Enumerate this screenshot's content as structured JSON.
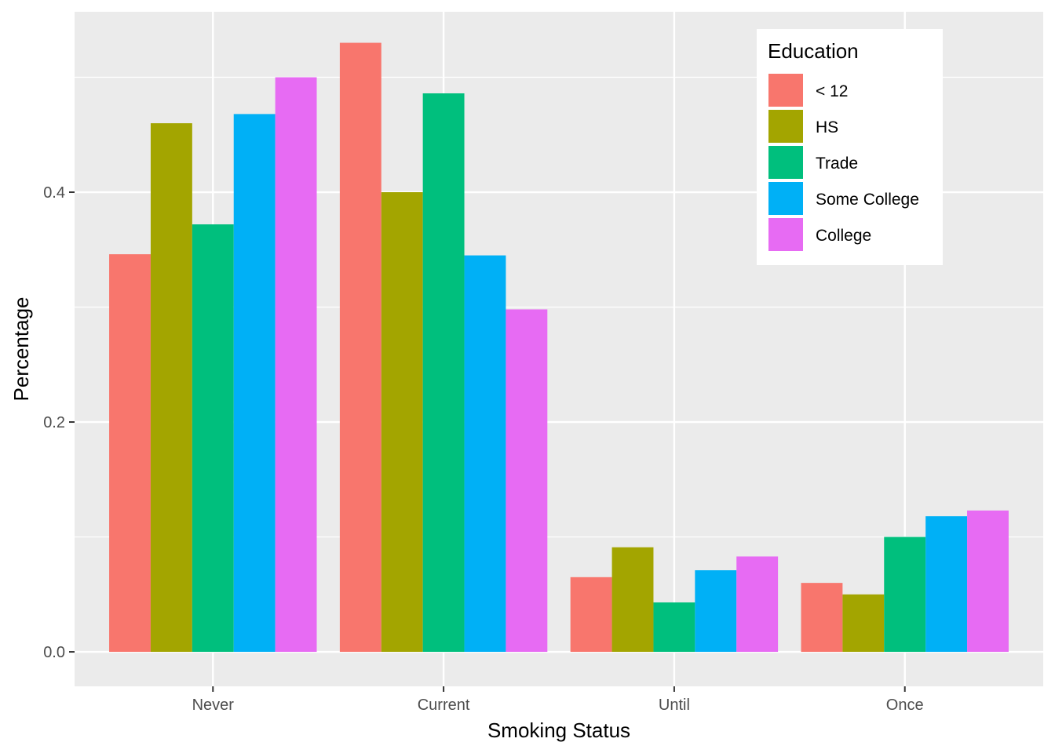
{
  "chart_data": {
    "type": "bar",
    "title": "",
    "xlabel": "Smoking Status",
    "ylabel": "Percentage",
    "categories": [
      "Never",
      "Current",
      "Until",
      "Once"
    ],
    "ylim": [
      -0.03,
      0.557
    ],
    "yticks": [
      0.0,
      0.2,
      0.4
    ],
    "ytick_labels": [
      "0.0",
      "0.2",
      "0.4"
    ],
    "grid": true,
    "legend": {
      "title": "Education",
      "position": "top-right"
    },
    "series": [
      {
        "name": "< 12",
        "color": "#F8766D",
        "values": [
          0.346,
          0.53,
          0.065,
          0.06
        ]
      },
      {
        "name": "HS",
        "color": "#A3A500",
        "values": [
          0.46,
          0.4,
          0.091,
          0.05
        ]
      },
      {
        "name": "Trade",
        "color": "#00BF7D",
        "values": [
          0.372,
          0.486,
          0.043,
          0.1
        ]
      },
      {
        "name": "Some College",
        "color": "#00B0F6",
        "values": [
          0.468,
          0.345,
          0.071,
          0.118
        ]
      },
      {
        "name": "College",
        "color": "#E76BF3",
        "values": [
          0.5,
          0.298,
          0.083,
          0.123
        ]
      }
    ]
  }
}
